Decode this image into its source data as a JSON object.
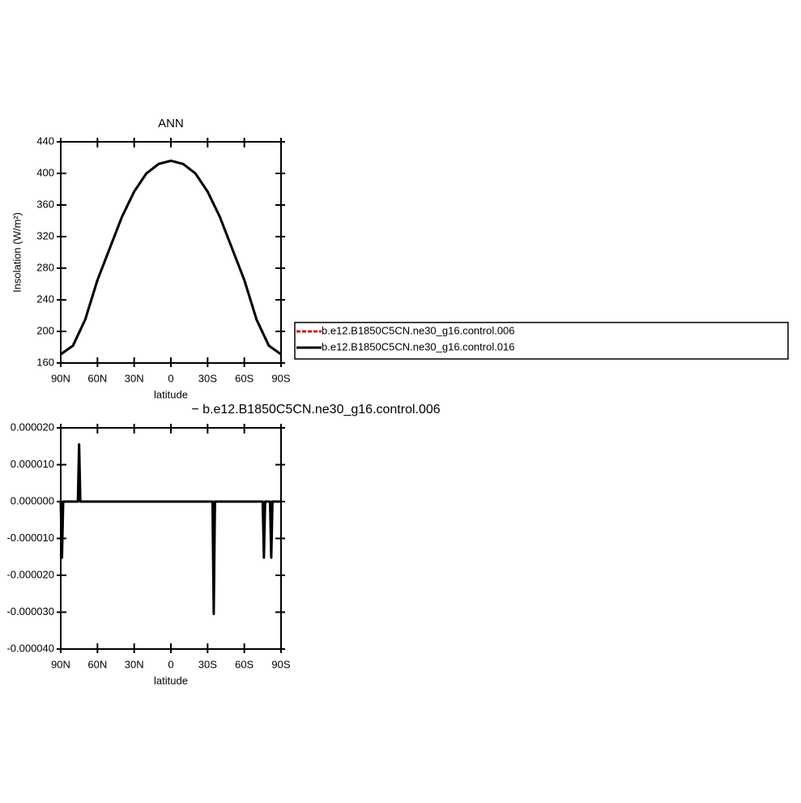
{
  "chart_data": [
    {
      "type": "line",
      "title": "ANN",
      "xlabel": "latitude",
      "ylabel": "Insolation (W/m²)",
      "x": [
        90,
        80,
        70,
        60,
        50,
        40,
        30,
        20,
        10,
        0,
        -10,
        -20,
        -30,
        -40,
        -50,
        -60,
        -70,
        -80,
        -90
      ],
      "xlim": [
        90,
        -90
      ],
      "xticks": [
        {
          "value": 90,
          "label": "90N"
        },
        {
          "value": 60,
          "label": "60N"
        },
        {
          "value": 30,
          "label": "30N"
        },
        0,
        {
          "value": -30,
          "label": "30S"
        },
        {
          "value": -60,
          "label": "60S"
        },
        {
          "value": -90,
          "label": "90S"
        }
      ],
      "ylim": [
        160,
        440
      ],
      "yticks": [
        160,
        200,
        240,
        280,
        320,
        360,
        400,
        440
      ],
      "legend": "right",
      "series": [
        {
          "name": "b.e12.B1850C5CN.ne30_g16.control.006",
          "color": "#e01010",
          "dashed": true,
          "values": [
            171,
            182,
            215,
            265,
            305,
            345,
            377,
            400,
            412,
            416,
            412,
            400,
            377,
            345,
            305,
            265,
            215,
            182,
            171
          ]
        },
        {
          "name": "b.e12.B1850C5CN.ne30_g16.control.016",
          "color": "#000000",
          "dashed": false,
          "values": [
            171,
            182,
            215,
            265,
            305,
            345,
            377,
            400,
            412,
            416,
            412,
            400,
            377,
            345,
            305,
            265,
            215,
            182,
            171
          ]
        }
      ]
    },
    {
      "type": "line",
      "title": "− b.e12.B1850C5CN.ne30_g16.control.006",
      "xlabel": "latitude",
      "x": [
        90,
        89,
        88,
        76,
        75,
        74,
        -34,
        -35,
        -36,
        -75,
        -76,
        -77,
        -81,
        -82,
        -83,
        -90
      ],
      "xlim": [
        90,
        -90
      ],
      "xticks": [
        {
          "value": 90,
          "label": "90N"
        },
        {
          "value": 60,
          "label": "60N"
        },
        {
          "value": 30,
          "label": "30N"
        },
        0,
        {
          "value": -30,
          "label": "30S"
        },
        {
          "value": -60,
          "label": "60S"
        },
        {
          "value": -90,
          "label": "90S"
        }
      ],
      "ylim": [
        -4e-05,
        2e-05
      ],
      "yticks": [
        {
          "value": 2e-05,
          "label": "0.000020"
        },
        {
          "value": 1e-05,
          "label": "0.000010"
        },
        {
          "value": 0,
          "label": "0.000000"
        },
        {
          "value": -1e-05,
          "label": "-0.000010"
        },
        {
          "value": -2e-05,
          "label": "-0.000020"
        },
        {
          "value": -3e-05,
          "label": "-0.000030"
        },
        {
          "value": -4e-05,
          "label": "-0.000040"
        }
      ],
      "series": [
        {
          "color": "#000000",
          "dashed": false,
          "values": [
            0,
            -1.52e-05,
            0,
            0,
            1.55e-05,
            0,
            0,
            -3.05e-05,
            0,
            0,
            -1.52e-05,
            0,
            0,
            -1.52e-05,
            0,
            0
          ]
        }
      ]
    }
  ]
}
